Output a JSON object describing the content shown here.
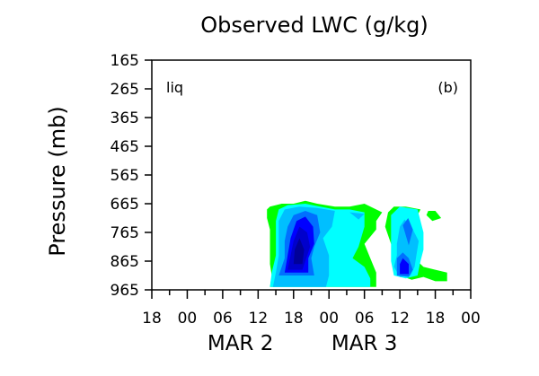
{
  "chart_data": {
    "type": "heatmap",
    "title": "Observed LWC (g/kg)",
    "ylabel": "Pressure (mb)",
    "xlabel": "",
    "annotations": {
      "left": "liq",
      "right": "(b)"
    },
    "y_axis": {
      "range": [
        965,
        165
      ],
      "ticks": [
        "165",
        "265",
        "365",
        "465",
        "565",
        "665",
        "765",
        "865",
        "965"
      ]
    },
    "x_axis": {
      "range_hours": [
        0,
        54
      ],
      "tick_labels": [
        "18",
        "00",
        "06",
        "12",
        "18",
        "00",
        "06",
        "12",
        "18",
        "00"
      ],
      "date_labels": [
        "MAR 2",
        "MAR 3"
      ]
    },
    "colors": [
      "#00ff00",
      "#00ffff",
      "#00bfff",
      "#0070ff",
      "#0000ff",
      "#0000cc",
      "#000099"
    ],
    "regions": [
      {
        "level": 0,
        "points": [
          [
            20,
            1
          ],
          [
            20.3,
            5
          ],
          [
            20,
            9
          ],
          [
            20,
            13
          ],
          [
            20,
            17
          ],
          [
            20,
            21
          ],
          [
            19.5,
            25
          ],
          [
            19.5,
            28
          ],
          [
            20,
            29
          ],
          [
            22,
            30
          ],
          [
            24,
            30
          ],
          [
            26,
            31
          ],
          [
            28,
            30
          ],
          [
            31,
            29
          ],
          [
            33.5,
            29
          ],
          [
            36,
            30
          ],
          [
            39,
            27
          ],
          [
            38,
            24
          ],
          [
            38,
            21
          ],
          [
            36,
            16
          ],
          [
            37,
            11
          ],
          [
            38,
            6
          ],
          [
            38,
            1
          ]
        ]
      },
      {
        "level": 0,
        "points": [
          [
            41.5,
            9
          ],
          [
            42,
            5
          ],
          [
            44,
            3.5
          ],
          [
            46,
            4.5
          ],
          [
            48,
            3
          ],
          [
            50,
            3
          ],
          [
            50,
            6
          ],
          [
            48,
            7
          ],
          [
            46,
            8
          ],
          [
            45,
            10
          ],
          [
            44,
            15
          ],
          [
            44,
            22
          ],
          [
            45.5,
            28
          ],
          [
            43,
            29
          ],
          [
            41,
            29
          ],
          [
            40,
            27
          ],
          [
            39.5,
            22
          ],
          [
            40.5,
            16
          ]
        ]
      },
      {
        "level": 0,
        "points": [
          [
            46.5,
            26
          ],
          [
            47.5,
            24
          ],
          [
            49,
            25
          ],
          [
            48,
            27.5
          ],
          [
            46.8,
            27.5
          ]
        ]
      },
      {
        "level": 1,
        "points": [
          [
            20,
            1
          ],
          [
            20.3,
            6
          ],
          [
            21,
            12
          ],
          [
            21,
            18
          ],
          [
            21,
            24
          ],
          [
            21.5,
            28
          ],
          [
            23,
            29.5
          ],
          [
            26,
            30
          ],
          [
            28.5,
            29
          ],
          [
            31,
            28
          ],
          [
            33.5,
            28
          ],
          [
            36,
            27
          ],
          [
            36,
            22
          ],
          [
            35,
            15
          ],
          [
            34,
            11
          ],
          [
            36,
            8
          ],
          [
            37,
            4
          ],
          [
            37,
            1
          ]
        ]
      },
      {
        "level": 1,
        "points": [
          [
            40.5,
            10
          ],
          [
            41,
            5
          ],
          [
            43,
            4
          ],
          [
            45,
            5
          ],
          [
            45.5,
            10
          ],
          [
            46,
            14
          ],
          [
            46,
            20
          ],
          [
            45,
            28
          ],
          [
            42,
            29
          ],
          [
            40.5,
            26
          ],
          [
            40.5,
            20
          ]
        ]
      },
      {
        "level": 2,
        "points": [
          [
            20.5,
            1
          ],
          [
            21,
            6
          ],
          [
            21.5,
            12
          ],
          [
            21.5,
            18
          ],
          [
            21.5,
            24
          ],
          [
            22.5,
            28
          ],
          [
            25,
            29
          ],
          [
            28,
            28.5
          ],
          [
            31,
            27.5
          ],
          [
            30.5,
            22
          ],
          [
            29,
            18
          ],
          [
            30,
            12
          ],
          [
            30,
            5
          ],
          [
            29.5,
            1
          ]
        ]
      },
      {
        "level": 2,
        "points": [
          [
            33.5,
            27
          ],
          [
            35,
            24.5
          ],
          [
            36,
            26.5
          ]
        ]
      },
      {
        "level": 2,
        "points": [
          [
            41,
            8
          ],
          [
            42,
            4.5
          ],
          [
            43.8,
            5
          ],
          [
            44.5,
            8
          ],
          [
            44.8,
            12
          ],
          [
            45.2,
            17
          ],
          [
            44.2,
            21
          ],
          [
            42.8,
            24.5
          ],
          [
            42,
            22
          ],
          [
            41.5,
            16
          ],
          [
            41.5,
            12
          ]
        ]
      },
      {
        "level": 3,
        "points": [
          [
            21.5,
            5
          ],
          [
            22.5,
            11
          ],
          [
            22.5,
            17
          ],
          [
            23,
            22
          ],
          [
            24,
            26
          ],
          [
            26,
            27.5
          ],
          [
            28,
            26
          ],
          [
            28.5,
            20
          ],
          [
            27.5,
            15
          ],
          [
            27,
            11
          ],
          [
            27.5,
            5
          ]
        ]
      },
      {
        "level": 3,
        "points": [
          [
            41.5,
            5
          ],
          [
            43.5,
            4.5
          ],
          [
            44.2,
            7
          ],
          [
            43.5,
            11
          ],
          [
            42.5,
            13
          ],
          [
            41.5,
            11
          ]
        ]
      },
      {
        "level": 3,
        "points": [
          [
            42.5,
            22.5
          ],
          [
            43,
            19
          ],
          [
            43.5,
            15.5
          ],
          [
            44.2,
            21
          ],
          [
            43.4,
            25
          ]
        ]
      },
      {
        "level": 4,
        "points": [
          [
            22.5,
            6
          ],
          [
            23,
            12
          ],
          [
            23.5,
            18
          ],
          [
            24.5,
            24
          ],
          [
            26,
            25.5
          ],
          [
            27.3,
            22
          ],
          [
            27.5,
            16
          ],
          [
            26.5,
            11
          ],
          [
            26.5,
            6
          ]
        ]
      },
      {
        "level": 4,
        "points": [
          [
            42,
            5.5
          ],
          [
            43.5,
            5.5
          ],
          [
            43.5,
            9
          ],
          [
            42.5,
            11
          ],
          [
            42,
            9
          ]
        ]
      },
      {
        "level": 5,
        "points": [
          [
            23,
            7
          ],
          [
            23.5,
            12
          ],
          [
            24,
            17
          ],
          [
            25,
            22
          ],
          [
            26.3,
            20
          ],
          [
            26.8,
            15
          ],
          [
            26,
            10
          ],
          [
            25.5,
            7
          ]
        ]
      },
      {
        "level": 6,
        "points": [
          [
            24,
            9
          ],
          [
            24.2,
            14
          ],
          [
            25,
            18
          ],
          [
            25.8,
            14
          ],
          [
            25.5,
            9
          ]
        ]
      }
    ]
  }
}
